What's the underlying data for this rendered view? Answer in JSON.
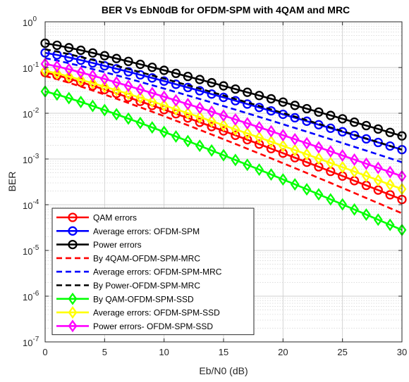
{
  "chart_data": {
    "type": "line",
    "title": "BER Vs EbN0dB for OFDM-SPM with 4QAM and MRC",
    "xlabel": "Eb/N0 (dB)",
    "ylabel": "BER",
    "xlim": [
      0,
      30
    ],
    "ylim": [
      1e-07,
      1
    ],
    "y_scale": "log",
    "grid": true,
    "legend_position": "bottom-left",
    "x_ticks": [
      "0",
      "5",
      "10",
      "15",
      "20",
      "25",
      "30"
    ],
    "y_ticks": [
      {
        "base": "10",
        "exp": "-7"
      },
      {
        "base": "10",
        "exp": "-6"
      },
      {
        "base": "10",
        "exp": "-5"
      },
      {
        "base": "10",
        "exp": "-4"
      },
      {
        "base": "10",
        "exp": "-3"
      },
      {
        "base": "10",
        "exp": "-2"
      },
      {
        "base": "10",
        "exp": "-1"
      },
      {
        "base": "10",
        "exp": "0"
      }
    ],
    "x": [
      0,
      30
    ],
    "series": [
      {
        "name": "QAM errors",
        "color": "#ff0000",
        "style": "solid",
        "marker": "circle",
        "values": [
          0.078,
          0.00013
        ]
      },
      {
        "name": "Average errors: OFDM-SPM",
        "color": "#0000ff",
        "style": "solid",
        "marker": "circle",
        "values": [
          0.21,
          0.0016
        ]
      },
      {
        "name": "Power errors",
        "color": "#000000",
        "style": "solid",
        "marker": "circle",
        "values": [
          0.34,
          0.0032
        ]
      },
      {
        "name": "By 4QAM-OFDM-SPM-MRC",
        "color": "#ff0000",
        "style": "dashed",
        "marker": "none",
        "values": [
          0.065,
          6.5e-05
        ]
      },
      {
        "name": "Average errors: OFDM-SPM-MRC",
        "color": "#0000ff",
        "style": "dashed",
        "marker": "none",
        "values": [
          0.16,
          0.00085
        ]
      },
      {
        "name": "By Power-OFDM-SPM-MRC",
        "color": "#000000",
        "style": "dashed",
        "marker": "none",
        "values": [
          0.25,
          0.0016
        ]
      },
      {
        "name": "By QAM-OFDM-SPM-SSD",
        "color": "#00ff00",
        "style": "solid",
        "marker": "diamond",
        "values": [
          0.03,
          2.8e-05
        ]
      },
      {
        "name": "Average errors: OFDM-SPM-SSD",
        "color": "#ffff00",
        "style": "solid",
        "marker": "diamond",
        "values": [
          0.085,
          0.00022
        ]
      },
      {
        "name": "Power errors- OFDM-SPM-SSD",
        "color": "#ff00ff",
        "style": "solid",
        "marker": "diamond",
        "values": [
          0.12,
          0.00042
        ]
      }
    ]
  }
}
